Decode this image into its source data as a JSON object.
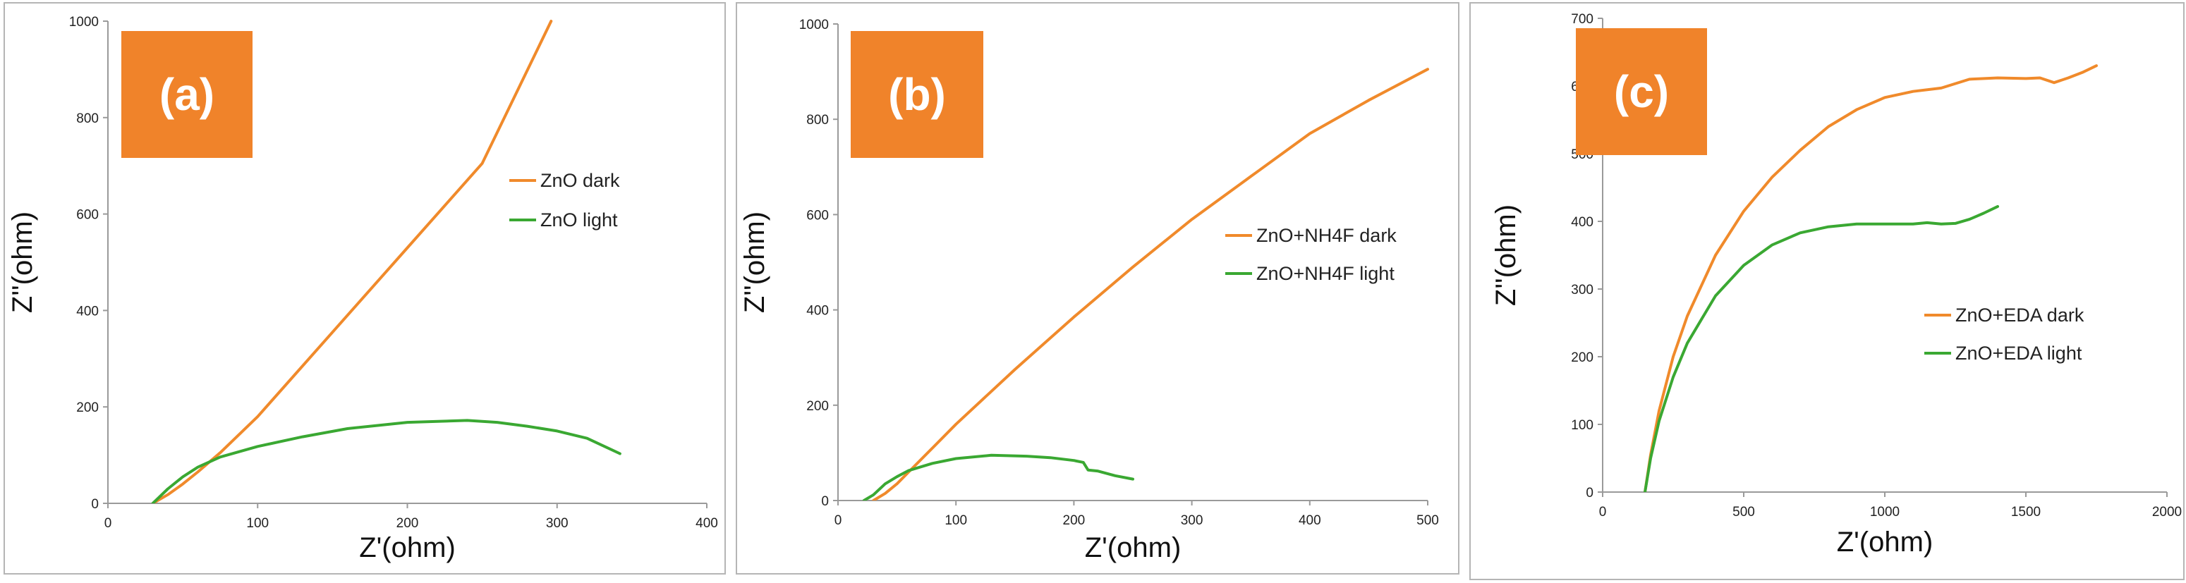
{
  "colors": {
    "dark": "#f08a2b",
    "light": "#3aa832",
    "label_box": "#f0832a",
    "axis": "#9a9a9a",
    "frame": "#b5b5b5"
  },
  "chart_data": [
    {
      "type": "line",
      "panel_label": "(a)",
      "xlabel": "Z'(ohm)",
      "ylabel": "Z''(ohm)",
      "xlim": [
        0,
        400
      ],
      "ylim": [
        0,
        1000
      ],
      "xticks": [
        0,
        100,
        200,
        300,
        400
      ],
      "yticks": [
        0,
        200,
        400,
        600,
        800,
        1000
      ],
      "xtick_labels": [
        "0",
        "100",
        "200",
        "300",
        "400"
      ],
      "ytick_labels": [
        "0",
        "200",
        "400",
        "600",
        "800",
        "1000"
      ],
      "legend_position": "right",
      "series": [
        {
          "name": "ZnO dark",
          "color": "#f08a2b",
          "x": [
            30,
            40,
            50,
            60,
            75,
            100,
            150,
            200,
            250,
            296
          ],
          "y": [
            0,
            18,
            40,
            65,
            105,
            180,
            355,
            530,
            705,
            1000
          ]
        },
        {
          "name": "ZnO light",
          "color": "#3aa832",
          "x": [
            30,
            40,
            50,
            60,
            75,
            100,
            130,
            160,
            200,
            240,
            260,
            280,
            300,
            320,
            342
          ],
          "y": [
            0,
            30,
            55,
            75,
            96,
            118,
            138,
            155,
            168,
            172,
            168,
            160,
            150,
            135,
            103
          ]
        }
      ]
    },
    {
      "type": "line",
      "panel_label": "(b)",
      "xlabel": "Z'(ohm)",
      "ylabel": "Z''(ohm)",
      "xlim": [
        0,
        500
      ],
      "ylim": [
        0,
        1000
      ],
      "xticks": [
        0,
        100,
        200,
        300,
        400,
        500
      ],
      "yticks": [
        0,
        200,
        400,
        600,
        800,
        1000
      ],
      "xtick_labels": [
        "0",
        "100",
        "200",
        "300",
        "400",
        "500"
      ],
      "ytick_labels": [
        "0",
        "200",
        "400",
        "600",
        "800",
        "1000"
      ],
      "legend_position": "right",
      "series": [
        {
          "name": "ZnO+NH4F dark",
          "color": "#f08a2b",
          "x": [
            30,
            40,
            50,
            60,
            80,
            100,
            150,
            200,
            250,
            300,
            350,
            400,
            450,
            500
          ],
          "y": [
            0,
            15,
            35,
            60,
            110,
            160,
            275,
            385,
            490,
            590,
            680,
            770,
            840,
            905
          ]
        },
        {
          "name": "ZnO+NH4F light",
          "color": "#3aa832",
          "x": [
            22,
            30,
            40,
            50,
            60,
            80,
            100,
            130,
            160,
            180,
            200,
            208,
            212,
            220,
            235,
            250
          ],
          "y": [
            0,
            12,
            35,
            50,
            63,
            78,
            88,
            95,
            93,
            90,
            84,
            80,
            64,
            62,
            52,
            45
          ]
        }
      ]
    },
    {
      "type": "line",
      "panel_label": "(c)",
      "xlabel": "Z'(ohm)",
      "ylabel": "Z''(ohm)",
      "xlim": [
        0,
        2000
      ],
      "ylim": [
        0,
        700
      ],
      "xticks": [
        0,
        500,
        1000,
        1500,
        2000
      ],
      "yticks": [
        0,
        100,
        200,
        300,
        400,
        500,
        600,
        700
      ],
      "xtick_labels": [
        "0",
        "500",
        "1000",
        "1500",
        "2000"
      ],
      "ytick_labels": [
        "0",
        "100",
        "200",
        "300",
        "400",
        "500",
        "600",
        "700"
      ],
      "legend_position": "right",
      "series": [
        {
          "name": "ZnO+EDA dark",
          "color": "#f08a2b",
          "x": [
            150,
            170,
            200,
            250,
            300,
            400,
            500,
            600,
            700,
            800,
            900,
            1000,
            1100,
            1200,
            1300,
            1400,
            1500,
            1550,
            1600,
            1650,
            1700,
            1750
          ],
          "y": [
            0,
            55,
            120,
            200,
            260,
            350,
            415,
            465,
            505,
            540,
            565,
            583,
            592,
            597,
            610,
            612,
            611,
            612,
            605,
            612,
            620,
            630
          ]
        },
        {
          "name": "ZnO+EDA light",
          "color": "#3aa832",
          "x": [
            150,
            170,
            200,
            250,
            300,
            400,
            500,
            600,
            700,
            800,
            900,
            1000,
            1100,
            1150,
            1200,
            1250,
            1300,
            1350,
            1400
          ],
          "y": [
            0,
            50,
            105,
            170,
            220,
            290,
            335,
            365,
            383,
            392,
            396,
            396,
            396,
            398,
            396,
            397,
            403,
            412,
            422
          ]
        }
      ]
    }
  ]
}
